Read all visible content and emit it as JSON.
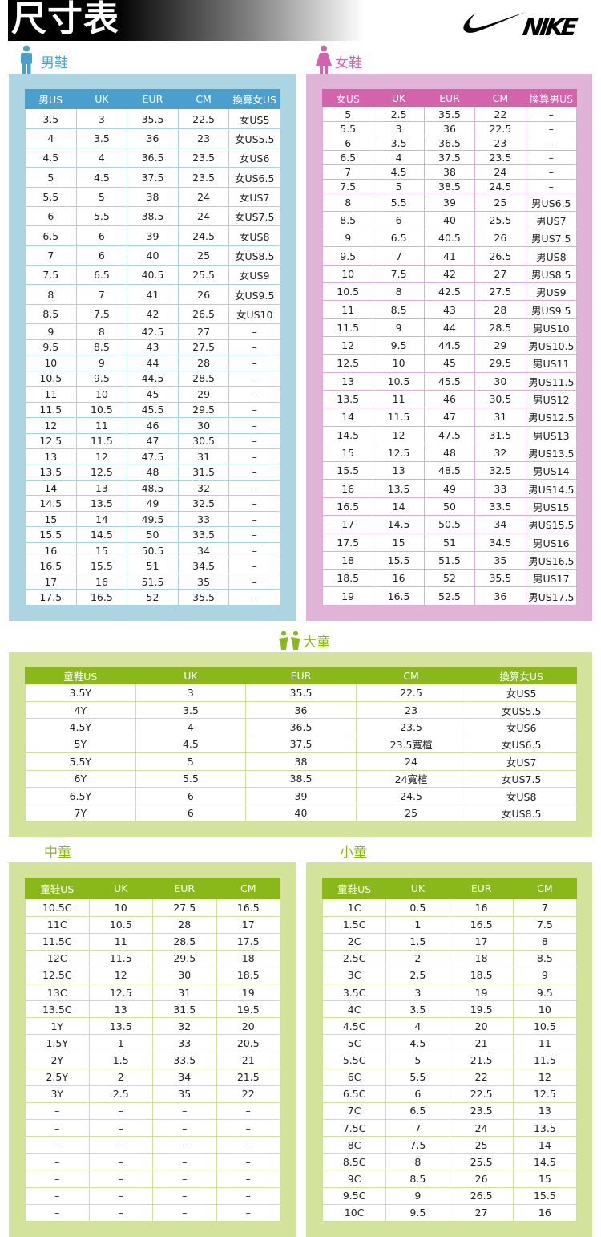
{
  "header": {
    "title": "尺寸表",
    "logo_text": "NIKE"
  },
  "colors": {
    "men_panel": "#acd5e1",
    "men_header": "#4b9fcf",
    "women_panel": "#e0b3d9",
    "women_header": "#d463ab",
    "kids_panel": "#d3e39c",
    "kids_header": "#8ab81a"
  },
  "men": {
    "label": "男鞋",
    "icon": "man-icon",
    "columns": [
      "男US",
      "UK",
      "EUR",
      "CM",
      "換算女US"
    ],
    "rows": [
      [
        "3.5",
        "3",
        "35.5",
        "22.5",
        "女US5"
      ],
      [
        "4",
        "3.5",
        "36",
        "23",
        "女US5.5"
      ],
      [
        "4.5",
        "4",
        "36.5",
        "23.5",
        "女US6"
      ],
      [
        "5",
        "4.5",
        "37.5",
        "23.5",
        "女US6.5"
      ],
      [
        "5.5",
        "5",
        "38",
        "24",
        "女US7"
      ],
      [
        "6",
        "5.5",
        "38.5",
        "24",
        "女US7.5"
      ],
      [
        "6.5",
        "6",
        "39",
        "24.5",
        "女US8"
      ],
      [
        "7",
        "6",
        "40",
        "25",
        "女US8.5"
      ],
      [
        "7.5",
        "6.5",
        "40.5",
        "25.5",
        "女US9"
      ],
      [
        "8",
        "7",
        "41",
        "26",
        "女US9.5"
      ],
      [
        "8.5",
        "7.5",
        "42",
        "26.5",
        "女US10"
      ],
      [
        "9",
        "8",
        "42.5",
        "27",
        "–"
      ],
      [
        "9.5",
        "8.5",
        "43",
        "27.5",
        "–"
      ],
      [
        "10",
        "9",
        "44",
        "28",
        "–"
      ],
      [
        "10.5",
        "9.5",
        "44.5",
        "28.5",
        "–"
      ],
      [
        "11",
        "10",
        "45",
        "29",
        "–"
      ],
      [
        "11.5",
        "10.5",
        "45.5",
        "29.5",
        "–"
      ],
      [
        "12",
        "11",
        "46",
        "30",
        "–"
      ],
      [
        "12.5",
        "11.5",
        "47",
        "30.5",
        "–"
      ],
      [
        "13",
        "12",
        "47.5",
        "31",
        "–"
      ],
      [
        "13.5",
        "12.5",
        "48",
        "31.5",
        "–"
      ],
      [
        "14",
        "13",
        "48.5",
        "32",
        "–"
      ],
      [
        "14.5",
        "13.5",
        "49",
        "32.5",
        "–"
      ],
      [
        "15",
        "14",
        "49.5",
        "33",
        "–"
      ],
      [
        "15.5",
        "14.5",
        "50",
        "33.5",
        "–"
      ],
      [
        "16",
        "15",
        "50.5",
        "34",
        "–"
      ],
      [
        "16.5",
        "15.5",
        "51",
        "34.5",
        "–"
      ],
      [
        "17",
        "16",
        "51.5",
        "35",
        "–"
      ],
      [
        "17.5",
        "16.5",
        "52",
        "35.5",
        "–"
      ]
    ]
  },
  "women": {
    "label": "女鞋",
    "icon": "woman-icon",
    "columns": [
      "女US",
      "UK",
      "EUR",
      "CM",
      "換算男US"
    ],
    "rows": [
      [
        "5",
        "2.5",
        "35.5",
        "22",
        "–"
      ],
      [
        "5.5",
        "3",
        "36",
        "22.5",
        "–"
      ],
      [
        "6",
        "3.5",
        "36.5",
        "23",
        "–"
      ],
      [
        "6.5",
        "4",
        "37.5",
        "23.5",
        "–"
      ],
      [
        "7",
        "4.5",
        "38",
        "24",
        "–"
      ],
      [
        "7.5",
        "5",
        "38.5",
        "24.5",
        "–"
      ],
      [
        "8",
        "5.5",
        "39",
        "25",
        "男US6.5"
      ],
      [
        "8.5",
        "6",
        "40",
        "25.5",
        "男US7"
      ],
      [
        "9",
        "6.5",
        "40.5",
        "26",
        "男US7.5"
      ],
      [
        "9.5",
        "7",
        "41",
        "26.5",
        "男US8"
      ],
      [
        "10",
        "7.5",
        "42",
        "27",
        "男US8.5"
      ],
      [
        "10.5",
        "8",
        "42.5",
        "27.5",
        "男US9"
      ],
      [
        "11",
        "8.5",
        "43",
        "28",
        "男US9.5"
      ],
      [
        "11.5",
        "9",
        "44",
        "28.5",
        "男US10"
      ],
      [
        "12",
        "9.5",
        "44.5",
        "29",
        "男US10.5"
      ],
      [
        "12.5",
        "10",
        "45",
        "29.5",
        "男US11"
      ],
      [
        "13",
        "10.5",
        "45.5",
        "30",
        "男US11.5"
      ],
      [
        "13.5",
        "11",
        "46",
        "30.5",
        "男US12"
      ],
      [
        "14",
        "11.5",
        "47",
        "31",
        "男US12.5"
      ],
      [
        "14.5",
        "12",
        "47.5",
        "31.5",
        "男US13"
      ],
      [
        "15",
        "12.5",
        "48",
        "32",
        "男US13.5"
      ],
      [
        "15.5",
        "13",
        "48.5",
        "32.5",
        "男US14"
      ],
      [
        "16",
        "13.5",
        "49",
        "33",
        "男US14.5"
      ],
      [
        "16.5",
        "14",
        "50",
        "33.5",
        "男US15"
      ],
      [
        "17",
        "14.5",
        "50.5",
        "34",
        "男US15.5"
      ],
      [
        "17.5",
        "15",
        "51",
        "34.5",
        "男US16"
      ],
      [
        "18",
        "15.5",
        "51.5",
        "35",
        "男US16.5"
      ],
      [
        "18.5",
        "16",
        "52",
        "35.5",
        "男US17"
      ],
      [
        "19",
        "16.5",
        "52.5",
        "36",
        "男US17.5"
      ]
    ]
  },
  "big_kids": {
    "label": "大童",
    "icon": "kids-icon",
    "columns": [
      "童鞋US",
      "UK",
      "EUR",
      "CM",
      "換算女US"
    ],
    "rows": [
      [
        "3.5Y",
        "3",
        "35.5",
        "22.5",
        "女US5"
      ],
      [
        "4Y",
        "3.5",
        "36",
        "23",
        "女US5.5"
      ],
      [
        "4.5Y",
        "4",
        "36.5",
        "23.5",
        "女US6"
      ],
      [
        "5Y",
        "4.5",
        "37.5",
        "23.5寬楦",
        "女US6.5"
      ],
      [
        "5.5Y",
        "5",
        "38",
        "24",
        "女US7"
      ],
      [
        "6Y",
        "5.5",
        "38.5",
        "24寬楦",
        "女US7.5"
      ],
      [
        "6.5Y",
        "6",
        "39",
        "24.5",
        "女US8"
      ],
      [
        "7Y",
        "6",
        "40",
        "25",
        "女US8.5"
      ]
    ]
  },
  "mid_kids": {
    "label": "中童",
    "columns": [
      "童鞋US",
      "UK",
      "EUR",
      "CM"
    ],
    "rows": [
      [
        "10.5C",
        "10",
        "27.5",
        "16.5"
      ],
      [
        "11C",
        "10.5",
        "28",
        "17"
      ],
      [
        "11.5C",
        "11",
        "28.5",
        "17.5"
      ],
      [
        "12C",
        "11.5",
        "29.5",
        "18"
      ],
      [
        "12.5C",
        "12",
        "30",
        "18.5"
      ],
      [
        "13C",
        "12.5",
        "31",
        "19"
      ],
      [
        "13.5C",
        "13",
        "31.5",
        "19.5"
      ],
      [
        "1Y",
        "13.5",
        "32",
        "20"
      ],
      [
        "1.5Y",
        "1",
        "33",
        "20.5"
      ],
      [
        "2Y",
        "1.5",
        "33.5",
        "21"
      ],
      [
        "2.5Y",
        "2",
        "34",
        "21.5"
      ],
      [
        "3Y",
        "2.5",
        "35",
        "22"
      ],
      [
        "–",
        "–",
        "–",
        "–"
      ],
      [
        "–",
        "–",
        "–",
        "–"
      ],
      [
        "–",
        "–",
        "–",
        "–"
      ],
      [
        "–",
        "–",
        "–",
        "–"
      ],
      [
        "–",
        "–",
        "–",
        "–"
      ],
      [
        "–",
        "–",
        "–",
        "–"
      ],
      [
        "–",
        "–",
        "–",
        "–"
      ]
    ]
  },
  "small_kids": {
    "label": "小童",
    "columns": [
      "童鞋US",
      "UK",
      "EUR",
      "CM"
    ],
    "rows": [
      [
        "1C",
        "0.5",
        "16",
        "7"
      ],
      [
        "1.5C",
        "1",
        "16.5",
        "7.5"
      ],
      [
        "2C",
        "1.5",
        "17",
        "8"
      ],
      [
        "2.5C",
        "2",
        "18",
        "8.5"
      ],
      [
        "3C",
        "2.5",
        "18.5",
        "9"
      ],
      [
        "3.5C",
        "3",
        "19",
        "9.5"
      ],
      [
        "4C",
        "3.5",
        "19.5",
        "10"
      ],
      [
        "4.5C",
        "4",
        "20",
        "10.5"
      ],
      [
        "5C",
        "4.5",
        "21",
        "11"
      ],
      [
        "5.5C",
        "5",
        "21.5",
        "11.5"
      ],
      [
        "6C",
        "5.5",
        "22",
        "12"
      ],
      [
        "6.5C",
        "6",
        "22.5",
        "12.5"
      ],
      [
        "7C",
        "6.5",
        "23.5",
        "13"
      ],
      [
        "7.5C",
        "7",
        "24",
        "13.5"
      ],
      [
        "8C",
        "7.5",
        "25",
        "14"
      ],
      [
        "8.5C",
        "8",
        "25.5",
        "14.5"
      ],
      [
        "9C",
        "8.5",
        "26",
        "15"
      ],
      [
        "9.5C",
        "9",
        "26.5",
        "15.5"
      ],
      [
        "10C",
        "9.5",
        "27",
        "16"
      ]
    ]
  }
}
